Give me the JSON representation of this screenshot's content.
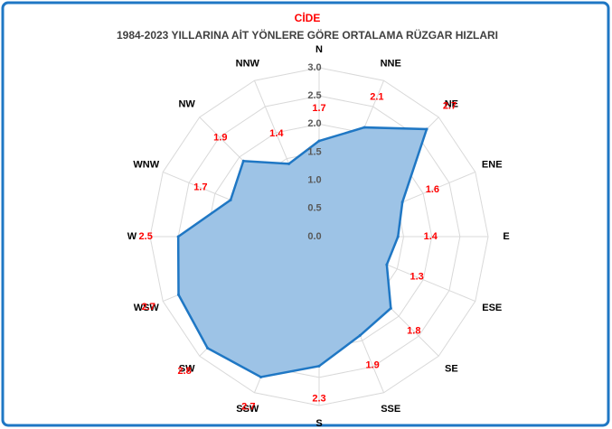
{
  "chart_data": {
    "type": "radar",
    "title": "CİDE",
    "subtitle": "1984-2023 YILLARINA AİT YÖNLERE GÖRE ORTALAMA RÜZGAR HIZLARI",
    "categories": [
      "N",
      "NNE",
      "NE",
      "ENE",
      "E",
      "ESE",
      "SE",
      "SSE",
      "S",
      "SSW",
      "SW",
      "WSW",
      "W",
      "WNW",
      "NW",
      "NNW"
    ],
    "values": [
      1.7,
      2.1,
      2.7,
      1.6,
      1.4,
      1.3,
      1.8,
      1.9,
      2.3,
      2.7,
      2.8,
      2.7,
      2.5,
      1.7,
      1.9,
      1.4
    ],
    "color": "#1f77c4",
    "fill": "#9dc3e6",
    "label_color": "#ff0000",
    "ylim": [
      0,
      3
    ],
    "yticks": [
      {
        "value": 0,
        "label": "0.0"
      },
      0.5,
      {
        "value": 1,
        "label": "1.0"
      },
      1.5,
      {
        "value": 2,
        "label": "2.0"
      },
      2.5,
      {
        "value": 3,
        "label": "3.0"
      }
    ],
    "grid": true
  }
}
